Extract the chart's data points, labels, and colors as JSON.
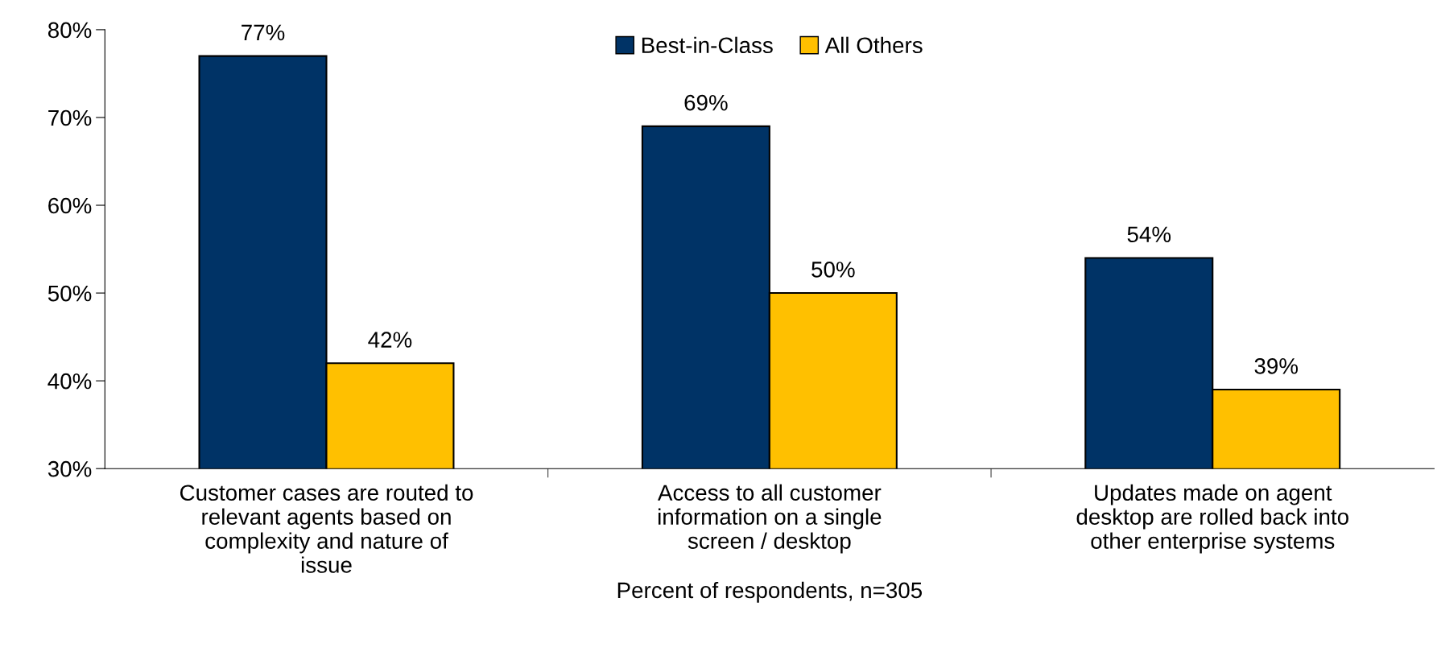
{
  "chart_data": {
    "type": "bar",
    "categories": [
      "Customer cases are routed to\nrelevant agents based on\ncomplexity and nature of\nissue",
      "Access to all customer\ninformation on a single\nscreen / desktop",
      "Updates made on agent\ndesktop are rolled back into\nother enterprise systems"
    ],
    "series": [
      {
        "name": "Best-in-Class",
        "color": "#003366",
        "values": [
          77,
          69,
          54
        ],
        "value_labels": [
          "77%",
          "69%",
          "54%"
        ]
      },
      {
        "name": "All Others",
        "color": "#ffc000",
        "values": [
          42,
          50,
          39
        ],
        "value_labels": [
          "42%",
          "50%",
          "39%"
        ]
      }
    ],
    "xlabel": "Percent of respondents, n=305",
    "ylim": [
      30,
      80
    ],
    "yticks": [
      {
        "value": 30,
        "label": "30%"
      },
      {
        "value": 40,
        "label": "40%"
      },
      {
        "value": 50,
        "label": "50%"
      },
      {
        "value": 60,
        "label": "60%"
      },
      {
        "value": 70,
        "label": "70%"
      },
      {
        "value": 80,
        "label": "80%"
      }
    ],
    "grid": false,
    "legend": "top"
  }
}
